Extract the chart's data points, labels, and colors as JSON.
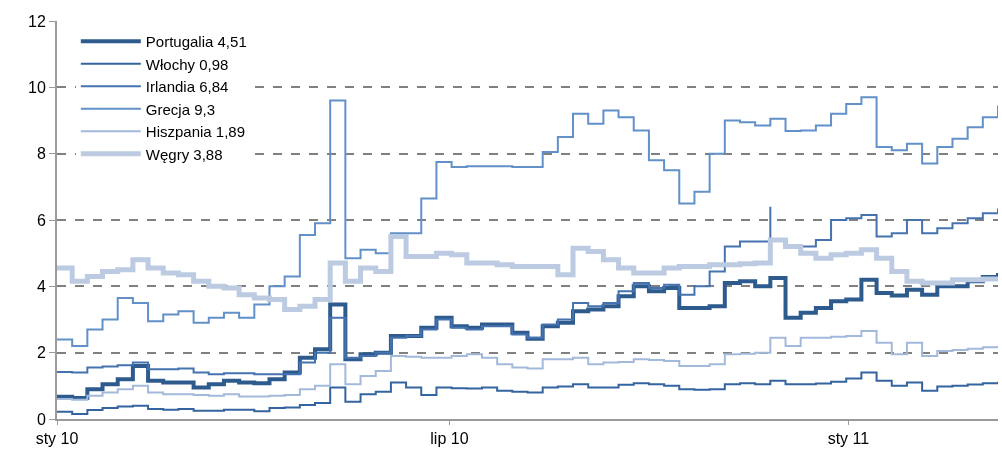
{
  "chart_data": {
    "type": "step",
    "x": [
      "2010-01-01",
      "2010-01-08",
      "2010-01-15",
      "2010-01-22",
      "2010-01-29",
      "2010-02-05",
      "2010-02-12",
      "2010-02-19",
      "2010-02-26",
      "2010-03-05",
      "2010-03-12",
      "2010-03-19",
      "2010-03-26",
      "2010-04-02",
      "2010-04-09",
      "2010-04-16",
      "2010-04-23",
      "2010-04-30",
      "2010-05-07",
      "2010-05-14",
      "2010-05-21",
      "2010-05-28",
      "2010-06-04",
      "2010-06-11",
      "2010-06-18",
      "2010-06-25",
      "2010-07-02",
      "2010-07-09",
      "2010-07-16",
      "2010-07-23",
      "2010-07-30",
      "2010-08-06",
      "2010-08-13",
      "2010-08-20",
      "2010-08-27",
      "2010-09-03",
      "2010-09-10",
      "2010-09-17",
      "2010-09-24",
      "2010-10-01",
      "2010-10-08",
      "2010-10-15",
      "2010-10-22",
      "2010-10-29",
      "2010-11-05",
      "2010-11-12",
      "2010-11-19",
      "2010-11-26",
      "2010-12-03",
      "2010-12-10",
      "2010-12-17",
      "2010-12-24",
      "2010-12-31",
      "2011-01-07",
      "2011-01-14",
      "2011-01-21",
      "2011-01-28",
      "2011-02-04",
      "2011-02-11",
      "2011-02-18",
      "2011-02-25",
      "2011-03-04",
      "2011-03-11"
    ],
    "series": [
      {
        "name": "Portugalia 4,51",
        "color": "#2e5b8e",
        "values": [
          0.67,
          0.63,
          0.9,
          1.05,
          1.2,
          1.6,
          1.15,
          1.1,
          1.1,
          0.95,
          1.05,
          1.15,
          1.1,
          1.08,
          1.2,
          1.4,
          1.85,
          2.1,
          3.45,
          1.8,
          1.95,
          2.0,
          2.5,
          2.5,
          2.75,
          3.05,
          2.8,
          2.75,
          2.85,
          2.85,
          2.6,
          2.42,
          2.8,
          2.9,
          3.25,
          3.3,
          3.4,
          3.7,
          4.0,
          3.85,
          3.95,
          3.35,
          3.35,
          3.4,
          4.1,
          4.15,
          4.0,
          4.25,
          3.05,
          3.2,
          3.35,
          3.55,
          3.6,
          4.2,
          3.8,
          3.72,
          3.9,
          3.75,
          4.0,
          4.0,
          4.15,
          4.28,
          4.4
        ]
      },
      {
        "name": "Włochy 0,98",
        "color": "#34649f",
        "values": [
          0.22,
          0.15,
          0.27,
          0.33,
          0.38,
          0.4,
          0.3,
          0.28,
          0.3,
          0.25,
          0.25,
          0.28,
          0.28,
          0.23,
          0.33,
          0.35,
          0.42,
          0.48,
          0.95,
          0.52,
          0.75,
          0.82,
          1.1,
          0.95,
          0.72,
          0.95,
          0.93,
          0.92,
          0.95,
          0.85,
          0.82,
          0.8,
          0.95,
          0.98,
          1.05,
          0.95,
          0.95,
          1.03,
          1.08,
          1.05,
          1.0,
          0.9,
          0.88,
          0.9,
          1.05,
          1.08,
          1.05,
          1.15,
          1.05,
          1.05,
          1.07,
          1.12,
          1.22,
          1.4,
          1.15,
          1.0,
          1.1,
          0.85,
          0.98,
          1.0,
          1.04,
          1.08,
          1.12
        ]
      },
      {
        "name": "Irlandia 6,84",
        "color": "#4573b0",
        "values": [
          1.42,
          1.4,
          1.55,
          1.58,
          1.62,
          1.7,
          1.5,
          1.5,
          1.52,
          1.4,
          1.35,
          1.38,
          1.38,
          1.35,
          1.35,
          1.35,
          1.7,
          2.0,
          3.05,
          1.85,
          1.9,
          2.0,
          2.45,
          2.5,
          2.7,
          3.0,
          2.75,
          2.7,
          2.8,
          2.8,
          2.55,
          2.45,
          2.85,
          3.0,
          3.5,
          3.4,
          3.5,
          3.85,
          4.1,
          3.95,
          4.05,
          3.75,
          4.0,
          4.45,
          5.2,
          5.35,
          5.35,
          6.4,
          null,
          5.2,
          5.4,
          6.0,
          6.05,
          6.15,
          5.5,
          5.6,
          6.0,
          5.6,
          5.75,
          5.9,
          6.05,
          6.2,
          6.35
        ]
      },
      {
        "name": "Grecja 9,3",
        "color": "#6290c8",
        "values": [
          2.4,
          2.2,
          2.7,
          3.0,
          3.65,
          3.5,
          2.95,
          3.15,
          3.25,
          2.9,
          3.05,
          3.2,
          3.05,
          3.45,
          4.0,
          4.3,
          5.55,
          5.9,
          9.6,
          4.85,
          5.1,
          5.0,
          5.6,
          5.6,
          6.65,
          7.75,
          7.6,
          7.62,
          7.62,
          7.62,
          7.6,
          7.6,
          8.05,
          8.5,
          9.2,
          8.9,
          9.3,
          9.1,
          8.7,
          7.8,
          7.5,
          6.5,
          6.85,
          8.0,
          9.0,
          8.95,
          8.85,
          9.05,
          8.68,
          8.7,
          8.85,
          9.2,
          9.5,
          9.7,
          8.2,
          8.1,
          8.3,
          7.7,
          8.2,
          8.45,
          8.8,
          9.1,
          9.45
        ]
      },
      {
        "name": "Hiszpania 1,89",
        "color": "#a3b9dc",
        "values": [
          0.6,
          0.58,
          0.7,
          0.8,
          0.9,
          1.0,
          0.8,
          0.75,
          0.75,
          0.72,
          0.7,
          0.75,
          0.68,
          0.68,
          0.7,
          0.72,
          0.9,
          1.0,
          1.65,
          1.05,
          1.3,
          1.45,
          1.9,
          1.88,
          1.85,
          1.85,
          1.9,
          1.95,
          1.85,
          1.65,
          1.55,
          1.52,
          1.8,
          1.8,
          1.85,
          1.65,
          1.7,
          1.72,
          1.8,
          1.78,
          1.75,
          1.6,
          1.6,
          1.65,
          1.95,
          1.97,
          2.0,
          2.45,
          2.2,
          2.45,
          2.45,
          2.48,
          2.5,
          2.65,
          2.3,
          1.95,
          2.3,
          1.9,
          2.05,
          2.08,
          2.12,
          2.16,
          2.2
        ]
      },
      {
        "name": "Węgry 3,88",
        "color": "#bccbe2",
        "values": [
          4.55,
          4.15,
          4.3,
          4.45,
          4.5,
          4.8,
          4.55,
          4.4,
          4.35,
          4.15,
          4.0,
          3.95,
          3.75,
          3.65,
          3.6,
          3.3,
          3.4,
          3.6,
          4.7,
          4.15,
          4.55,
          4.45,
          5.5,
          4.9,
          4.9,
          5.0,
          4.95,
          4.7,
          4.7,
          4.65,
          4.6,
          4.6,
          4.6,
          4.35,
          5.15,
          5.05,
          4.8,
          4.55,
          4.4,
          4.4,
          4.55,
          4.6,
          4.6,
          4.65,
          4.65,
          4.68,
          4.7,
          5.4,
          5.2,
          5.0,
          4.85,
          4.95,
          5.0,
          5.1,
          4.85,
          4.45,
          4.15,
          4.1,
          4.1,
          4.2,
          4.2,
          4.22,
          4.25
        ]
      }
    ],
    "xlim": [
      "2010-01-01",
      "2011-03-11"
    ],
    "xticks": [
      {
        "value": "2010-01-01",
        "label": "sty 10"
      },
      {
        "value": "2010-07-01",
        "label": "lip 10"
      },
      {
        "value": "2011-01-01",
        "label": "sty 11"
      }
    ],
    "ylim": [
      0,
      12
    ],
    "yticks": [
      0,
      2,
      4,
      6,
      8,
      10,
      12
    ],
    "grid": "y",
    "legend": "top left",
    "marker": "none",
    "line_style": "solid"
  }
}
